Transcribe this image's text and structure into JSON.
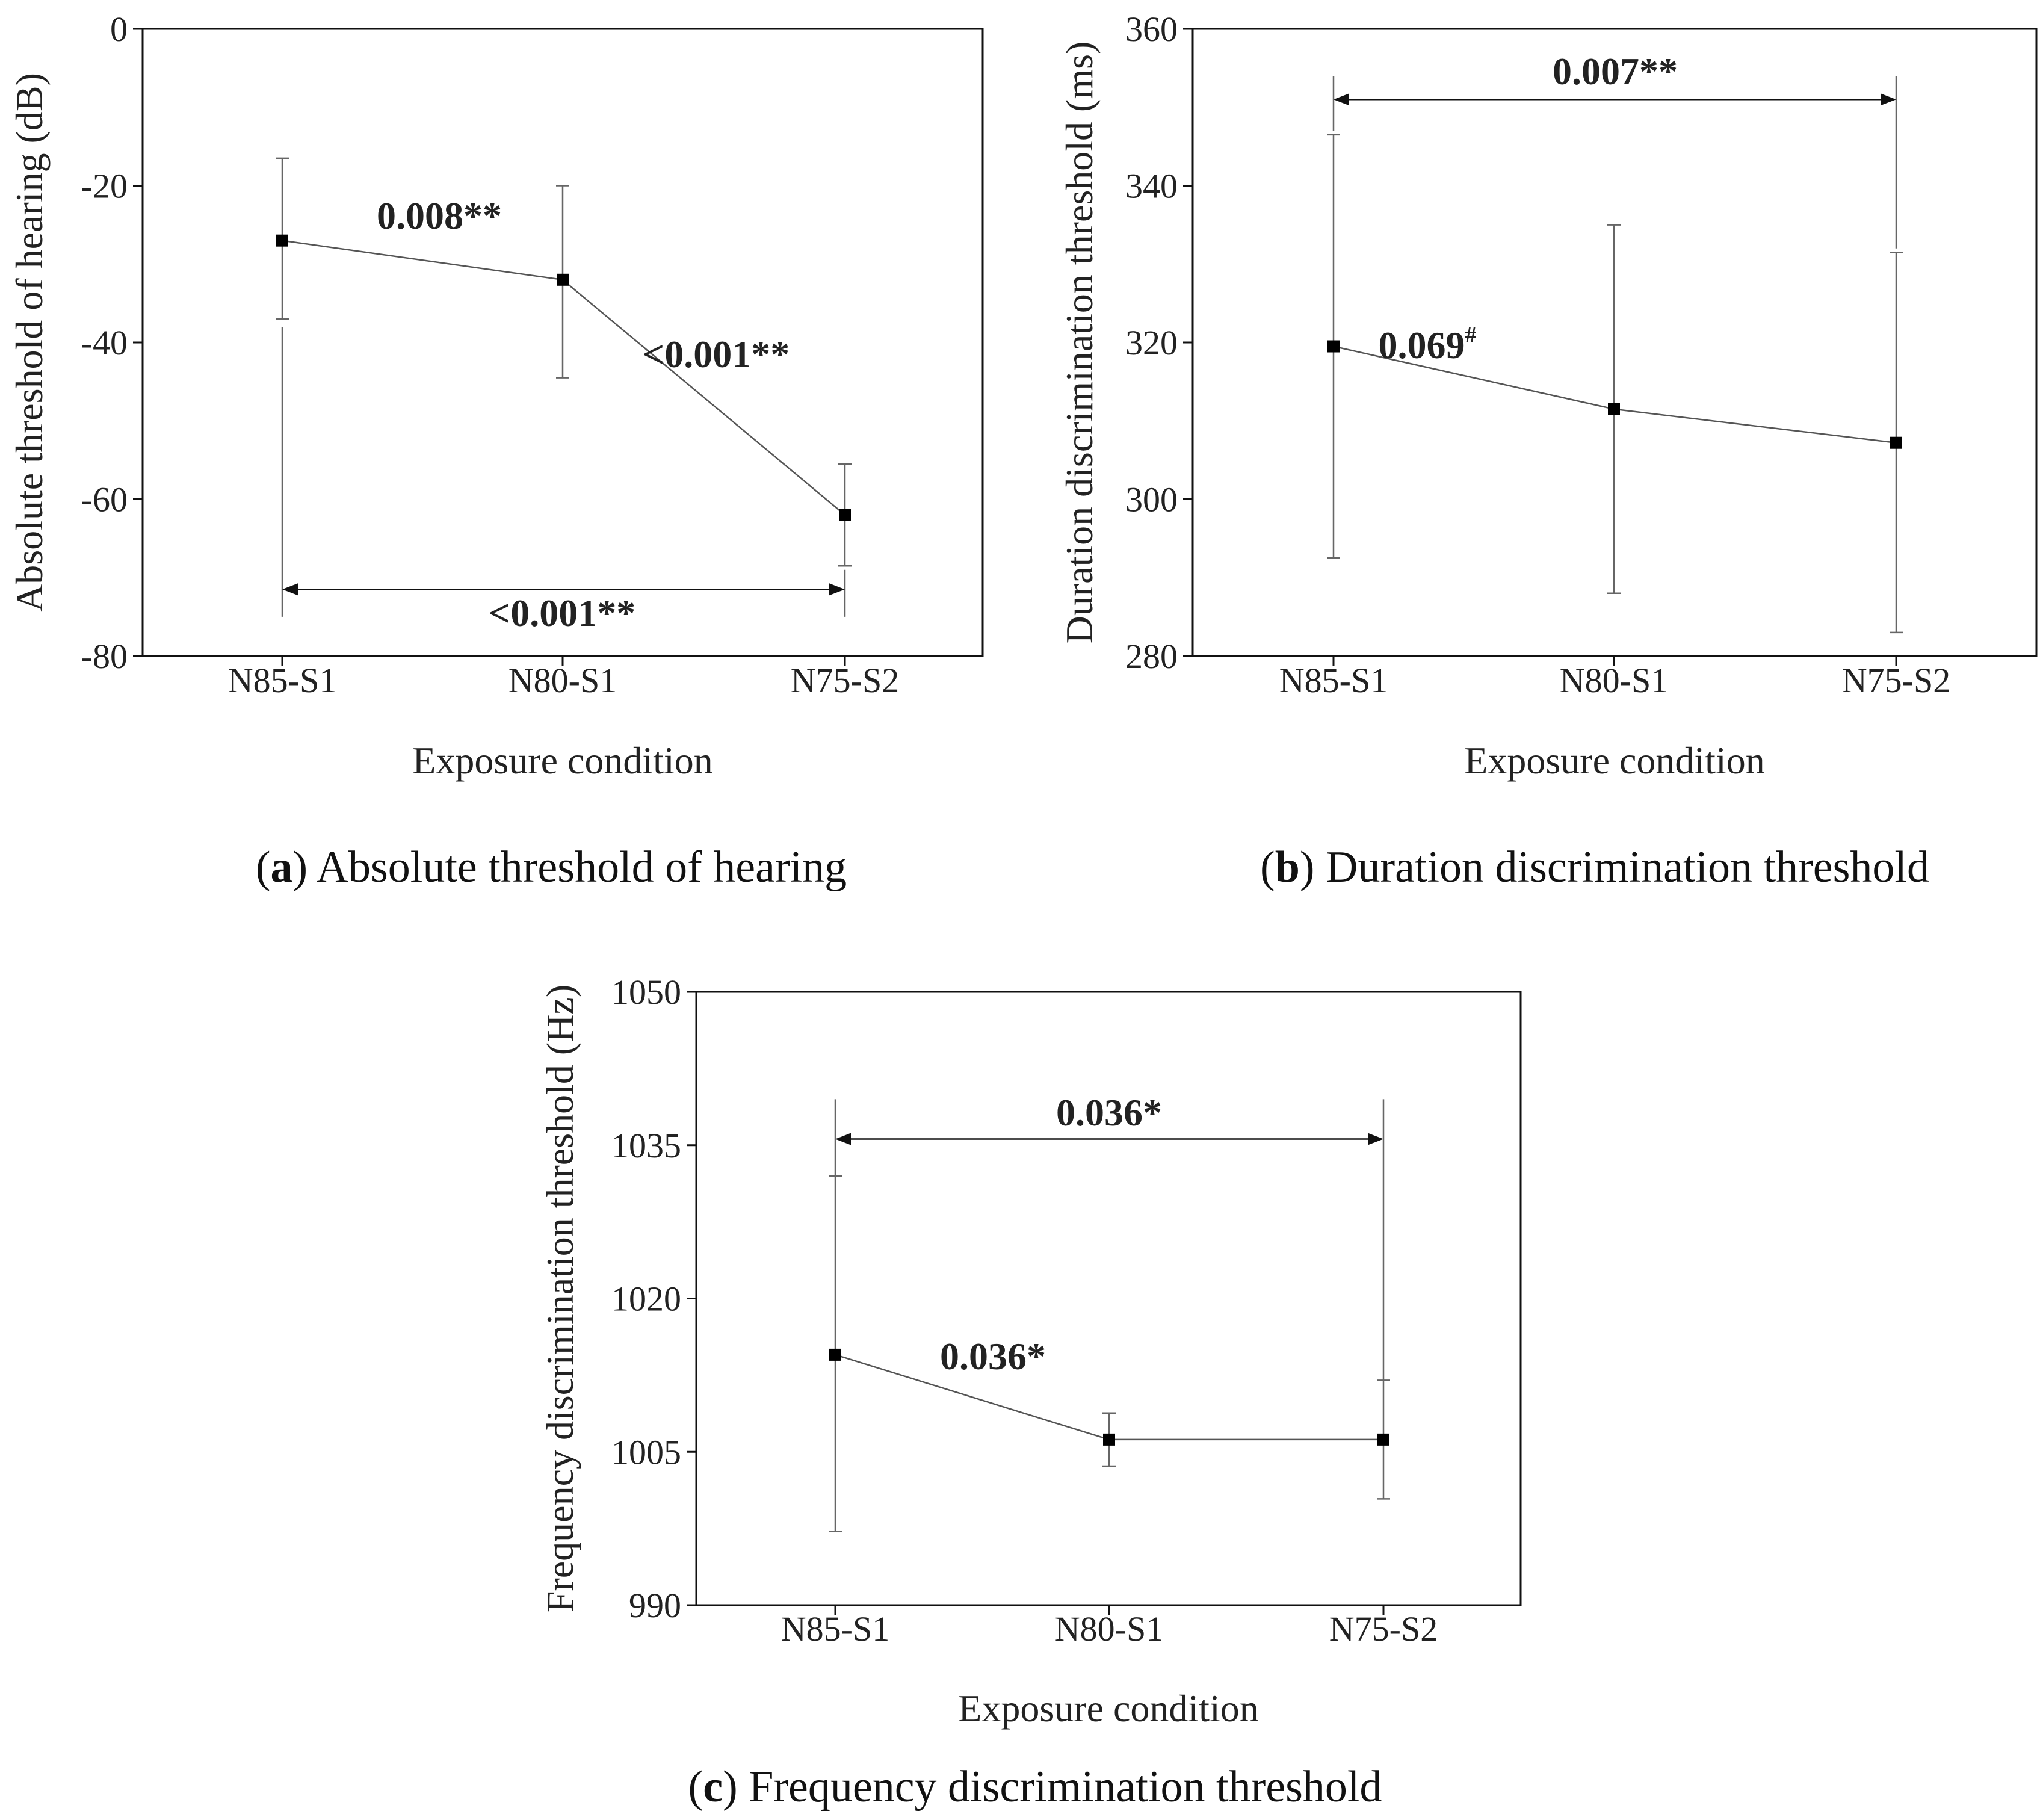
{
  "chart_data": [
    {
      "id": "a",
      "type": "line",
      "categories": [
        "N85-S1",
        "N80-S1",
        "N75-S2"
      ],
      "series": [
        {
          "name": "Absolute threshold of hearing",
          "values": [
            -27,
            -32,
            -62
          ]
        }
      ],
      "error_bars": {
        "upper": [
          -16.5,
          -20,
          -55.5
        ],
        "lower": [
          -37,
          -44.5,
          -68.5
        ]
      },
      "extra_error_line": [
        {
          "category_index": 0,
          "upper": -38,
          "lower": -75
        },
        {
          "category_index": 2,
          "upper": -69,
          "lower": -75
        }
      ],
      "ylim": [
        -80,
        0
      ],
      "yticks": [
        "0",
        "-20",
        "-40",
        "-60",
        "-80"
      ],
      "ytick_values": [
        0,
        -20,
        -40,
        -60,
        -80
      ],
      "xlabel": "Exposure condition",
      "ylabel": "Absolute threshold of hearing (dB)",
      "annotations": [
        {
          "text": "0.008**",
          "sup": "",
          "between": [
            0,
            1
          ]
        },
        {
          "text": "<0.001**",
          "sup": "",
          "between": [
            1,
            2
          ]
        },
        {
          "text": "<0.001**",
          "sup": "",
          "bracket": [
            0,
            2
          ],
          "at": -71.5
        }
      ],
      "caption_letter": "a",
      "caption_text": "Absolute threshold of hearing"
    },
    {
      "id": "b",
      "type": "line",
      "categories": [
        "N85-S1",
        "N80-S1",
        "N75-S2"
      ],
      "series": [
        {
          "name": "Duration discrimination threshold",
          "values": [
            319.5,
            311.5,
            307.2
          ]
        }
      ],
      "error_bars": {
        "upper": [
          346.5,
          335,
          331.5
        ],
        "lower": [
          292.5,
          288,
          283
        ]
      },
      "extra_error_line": [
        {
          "category_index": 0,
          "upper": 354,
          "lower": 347
        },
        {
          "category_index": 2,
          "upper": 354,
          "lower": 332
        }
      ],
      "ylim": [
        280,
        360
      ],
      "yticks": [
        "360",
        "340",
        "320",
        "300",
        "280"
      ],
      "ytick_values": [
        360,
        340,
        320,
        300,
        280
      ],
      "xlabel": "Exposure condition",
      "ylabel": "Duration discrimination threshold (ms)",
      "annotations": [
        {
          "text": "0.069",
          "sup": "#",
          "between": [
            0,
            1
          ]
        },
        {
          "text": "0.007**",
          "sup": "",
          "bracket": [
            0,
            2
          ],
          "at": 351
        }
      ],
      "caption_letter": "b",
      "caption_text": "Duration discrimination threshold"
    },
    {
      "id": "c",
      "type": "line",
      "categories": [
        "N85-S1",
        "N80-S1",
        "N75-S2"
      ],
      "series": [
        {
          "name": "Frequency discrimination threshold",
          "values": [
            1014.5,
            1006.2,
            1006.2
          ]
        }
      ],
      "error_bars": {
        "upper": [
          1032,
          1008.8,
          1012
        ],
        "lower": [
          997.2,
          1003.6,
          1000.4
        ]
      },
      "extra_error_line": [
        {
          "category_index": 0,
          "upper": 1039.5,
          "lower": 1032
        },
        {
          "category_index": 2,
          "upper": 1039.5,
          "lower": 1012
        }
      ],
      "ylim": [
        990,
        1050
      ],
      "yticks": [
        "1050",
        "1035",
        "1020",
        "1005",
        "990"
      ],
      "ytick_values": [
        1050,
        1035,
        1020,
        1005,
        990
      ],
      "xlabel": "Exposure condition",
      "ylabel": "Frequency discrimination threshold (Hz)",
      "annotations": [
        {
          "text": "0.036*",
          "sup": "",
          "between": [
            0,
            1
          ]
        },
        {
          "text": "0.036*",
          "sup": "",
          "bracket": [
            0,
            2
          ],
          "at": 1035.6
        }
      ],
      "caption_letter": "c",
      "caption_text": "Frequency discrimination threshold"
    }
  ]
}
